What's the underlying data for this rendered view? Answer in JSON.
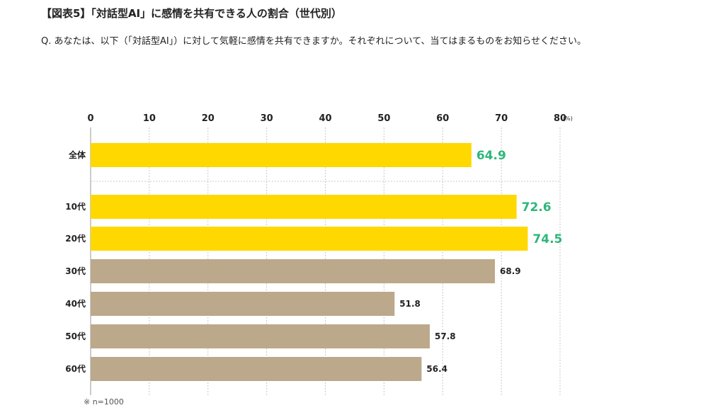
{
  "header": {
    "title": "【図表5】「対話型AI」に感情を共有できる人の割合（世代別）",
    "question": "Q. あなたは、以下（「対話型AI」）に対して気軽に感情を共有できますか。それぞれについて、当てはまるものをお知らせください。"
  },
  "footer": {
    "note": "※ n=1000"
  },
  "chart_data": {
    "type": "bar",
    "orientation": "horizontal",
    "categories": [
      "全体",
      "10代",
      "20代",
      "30代",
      "40代",
      "50代",
      "60代"
    ],
    "values": [
      64.9,
      72.6,
      74.5,
      68.9,
      51.8,
      57.8,
      56.4
    ],
    "value_labels": [
      "64.9",
      "72.6",
      "74.5",
      "68.9",
      "51.8",
      "57.8",
      "56.4"
    ],
    "xlim": [
      0,
      80
    ],
    "x_ticks": [
      0,
      10,
      20,
      30,
      40,
      50,
      60,
      70,
      80
    ],
    "x_unit": "(%)",
    "grid": true,
    "bar_colors": [
      "#FFD800",
      "#FFD800",
      "#FFD800",
      "#BCA88B",
      "#BCA88B",
      "#BCA88B",
      "#BCA88B"
    ],
    "label_colors": [
      "#2DB77A",
      "#2DB77A",
      "#2DB77A",
      "#222222",
      "#222222",
      "#222222",
      "#222222"
    ],
    "highlighted": [
      true,
      true,
      true,
      false,
      false,
      false,
      false
    ]
  }
}
